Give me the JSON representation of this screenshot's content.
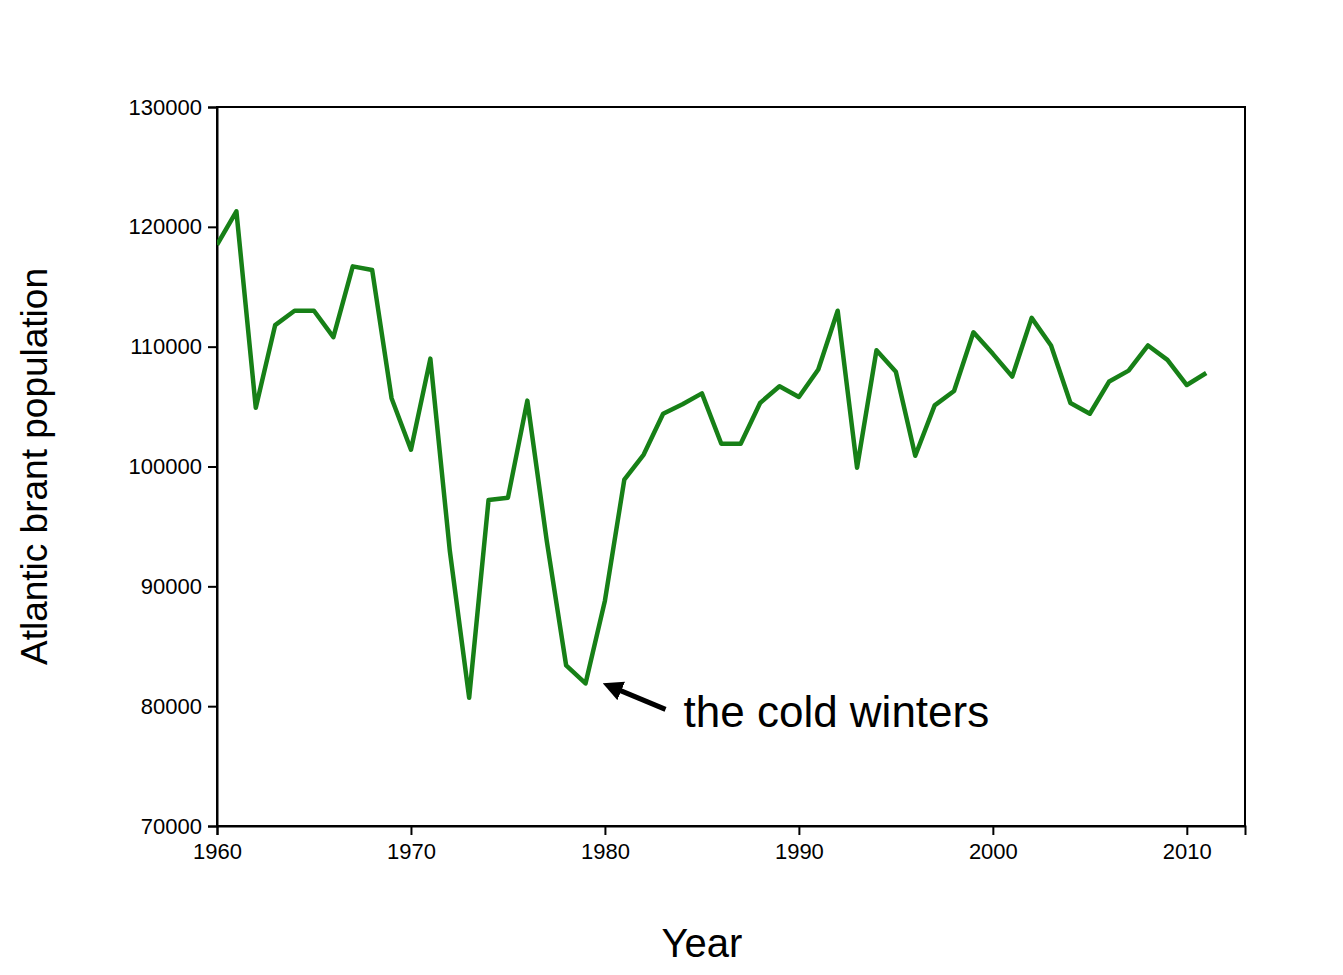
{
  "chart_data": {
    "type": "line",
    "x_label": "Year",
    "y_label": "Atlantic brant population",
    "color": "#178017",
    "x": [
      1960,
      1961,
      1962,
      1963,
      1964,
      1965,
      1966,
      1967,
      1968,
      1969,
      1970,
      1971,
      1972,
      1973,
      1974,
      1975,
      1976,
      1977,
      1978,
      1979,
      1980,
      1981,
      1982,
      1983,
      1984,
      1985,
      1986,
      1987,
      1988,
      1989,
      1990,
      1991,
      1992,
      1993,
      1994,
      1995,
      1996,
      1997,
      1998,
      1999,
      2000,
      2001,
      2002,
      2003,
      2004,
      2005,
      2006,
      2007,
      2008,
      2009,
      2010,
      2011
    ],
    "values": [
      118500,
      121300,
      104900,
      111800,
      113000,
      113000,
      110800,
      116700,
      116400,
      105700,
      101400,
      109000,
      93000,
      80700,
      97200,
      97400,
      105500,
      93800,
      83400,
      81900,
      88800,
      98900,
      101000,
      104400,
      105200,
      106100,
      101900,
      101900,
      105300,
      106700,
      105800,
      108100,
      113000,
      99900,
      109700,
      107900,
      100900,
      105100,
      106300,
      111200,
      109400,
      107500,
      112400,
      110100,
      105300,
      104400,
      107100,
      108000,
      110100,
      108900,
      106800,
      107800
    ],
    "xlim": [
      1960,
      2013
    ],
    "ylim": [
      70000,
      130000
    ],
    "xticks": [
      1960,
      1970,
      1980,
      1990,
      2000,
      2010
    ],
    "yticks": [
      70000,
      80000,
      90000,
      100000,
      110000,
      120000,
      130000
    ],
    "grid": false,
    "annotations": [
      {
        "text": "the cold winters",
        "x": 1979,
        "y": 81900
      }
    ]
  }
}
